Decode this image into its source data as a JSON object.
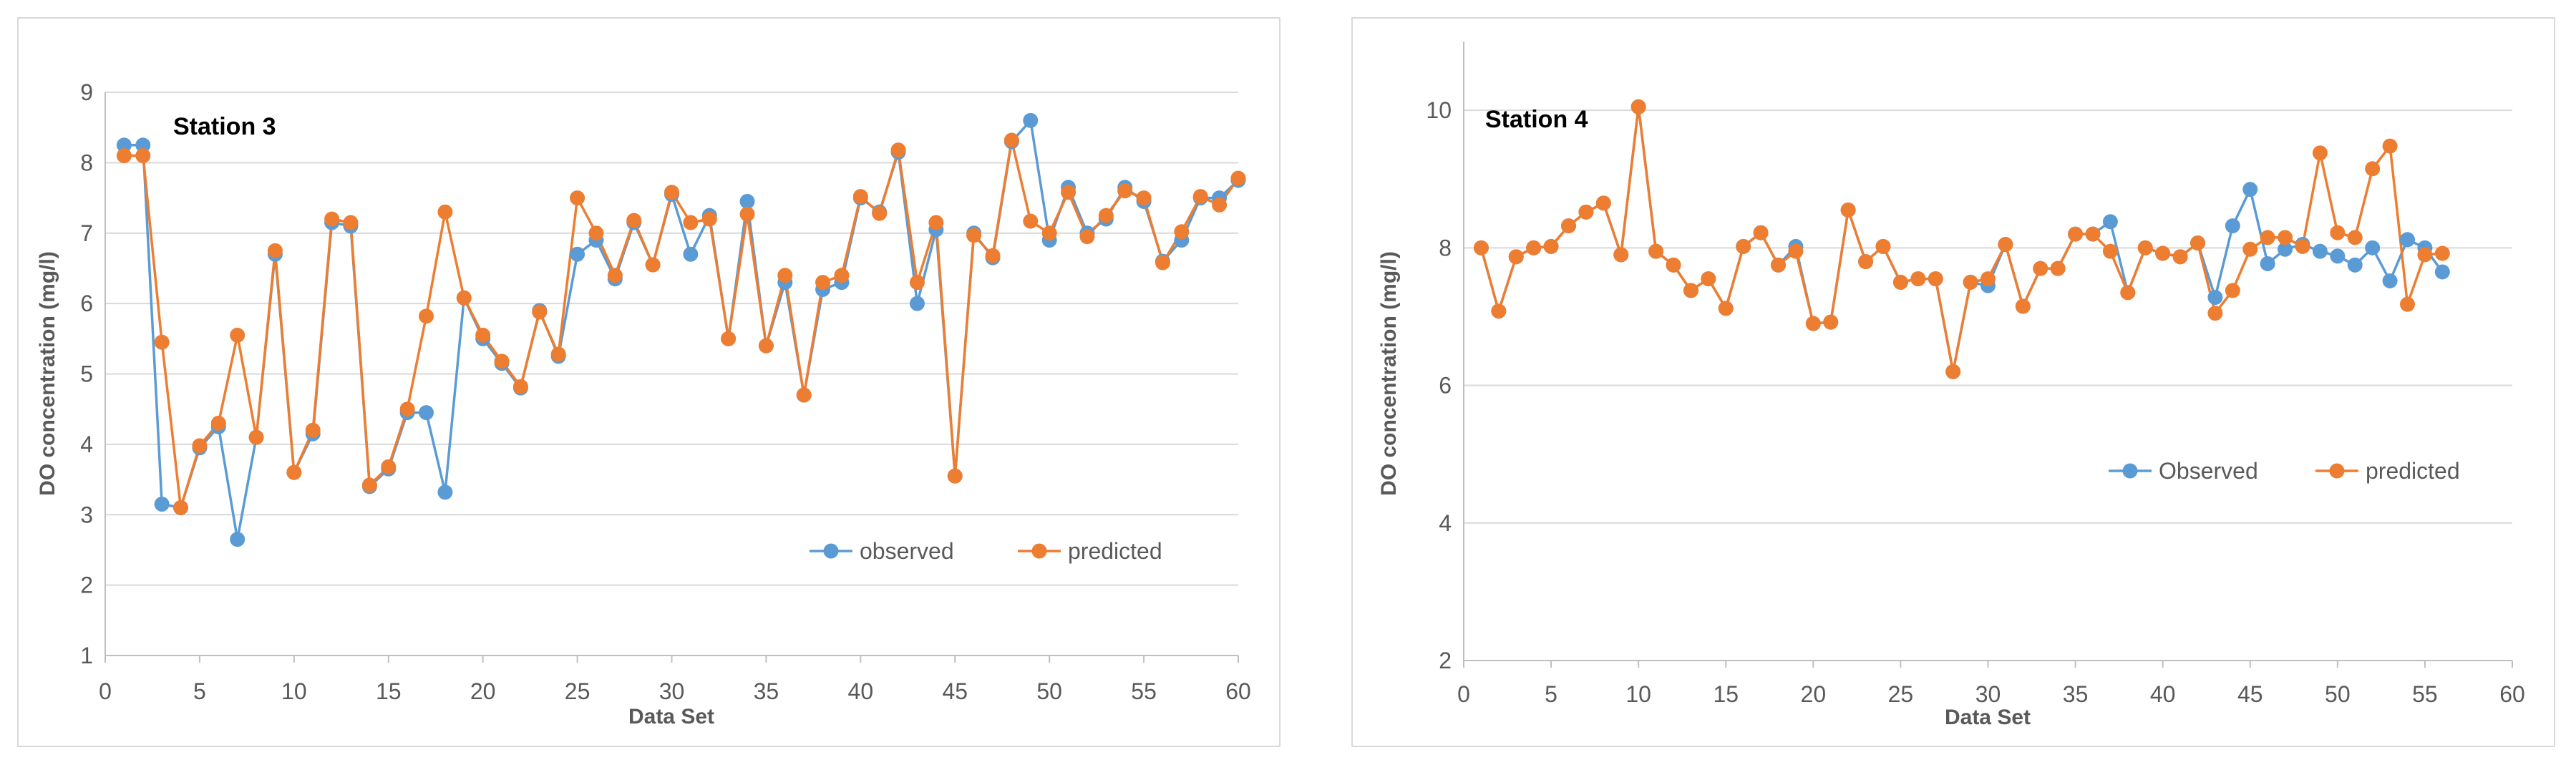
{
  "chart_data": [
    {
      "type": "line",
      "title": "Station 3",
      "xlabel": "Data Set",
      "ylabel": "DO concentration (mg/l)",
      "xlim": [
        0,
        60
      ],
      "ylim": [
        1,
        9
      ],
      "xticks": [
        0,
        5,
        10,
        15,
        20,
        25,
        30,
        35,
        40,
        45,
        50,
        55,
        60
      ],
      "yticks": [
        1,
        2,
        3,
        4,
        5,
        6,
        7,
        8,
        9
      ],
      "x_tick_labels": [
        "0",
        "5",
        "10",
        "15",
        "20",
        "25",
        "30",
        "35",
        "40",
        "45",
        "50",
        "55",
        "60"
      ],
      "y_tick_labels": [
        "1",
        "2",
        "3",
        "4",
        "5",
        "6",
        "7",
        "8",
        "9"
      ],
      "grid": true,
      "legend_position": "bottom-right",
      "series": [
        {
          "name": "observed",
          "color": "#5B9BD5",
          "values": [
            8.25,
            8.25,
            3.15,
            3.1,
            3.95,
            4.25,
            2.65,
            4.1,
            6.7,
            3.6,
            4.15,
            7.15,
            7.1,
            3.4,
            3.65,
            4.45,
            4.45,
            3.32,
            6.08,
            5.5,
            5.15,
            4.8,
            5.9,
            5.25,
            6.7,
            6.9,
            6.35,
            7.15,
            6.55,
            7.55,
            6.7,
            7.25,
            5.5,
            7.45,
            5.4,
            6.3,
            4.7,
            6.2,
            6.3,
            7.5,
            7.3,
            8.15,
            6.0,
            7.05,
            3.55,
            7.0,
            6.65,
            8.3,
            8.6,
            6.9,
            7.65,
            7.0,
            7.2,
            7.65,
            7.45,
            6.6,
            6.9,
            7.5,
            7.5,
            7.75
          ]
        },
        {
          "name": "predicted",
          "color": "#ED7D31",
          "values": [
            8.1,
            8.1,
            5.45,
            3.1,
            3.98,
            4.3,
            5.55,
            4.1,
            6.75,
            3.6,
            4.2,
            7.2,
            7.15,
            3.42,
            3.68,
            4.5,
            5.82,
            7.3,
            6.08,
            5.55,
            5.18,
            4.82,
            5.88,
            5.28,
            7.5,
            7.0,
            6.4,
            7.18,
            6.55,
            7.58,
            7.15,
            7.2,
            5.5,
            7.27,
            5.4,
            6.4,
            4.7,
            6.3,
            6.4,
            7.52,
            7.28,
            8.18,
            6.3,
            7.15,
            3.55,
            6.97,
            6.68,
            8.32,
            7.17,
            7.0,
            7.58,
            6.95,
            7.25,
            7.6,
            7.5,
            6.58,
            7.02,
            7.52,
            7.4,
            7.78
          ]
        }
      ]
    },
    {
      "type": "line",
      "title": "Station 4",
      "xlabel": "Data Set",
      "ylabel": "DO concentration (mg/l)",
      "xlim": [
        0,
        60
      ],
      "ylim": [
        2,
        11
      ],
      "xticks": [
        0,
        5,
        10,
        15,
        20,
        25,
        30,
        35,
        40,
        45,
        50,
        55,
        60
      ],
      "yticks": [
        2,
        4,
        6,
        8,
        10
      ],
      "x_tick_labels": [
        "0",
        "5",
        "10",
        "15",
        "20",
        "25",
        "30",
        "35",
        "40",
        "45",
        "50",
        "55",
        "60"
      ],
      "y_tick_labels": [
        "2",
        "4",
        "6",
        "8",
        "10"
      ],
      "grid": true,
      "legend_position": "right-middle",
      "series": [
        {
          "name": "Observed",
          "color": "#5B9BD5",
          "values": [
            8.0,
            7.08,
            7.87,
            8.0,
            8.02,
            8.32,
            8.52,
            8.65,
            7.9,
            10.05,
            7.95,
            7.75,
            7.38,
            7.55,
            7.12,
            8.02,
            8.22,
            7.75,
            8.02,
            6.9,
            6.92,
            8.55,
            7.8,
            8.02,
            7.5,
            7.55,
            7.55,
            6.2,
            7.5,
            7.45,
            8.05,
            7.15,
            7.7,
            7.7,
            8.2,
            8.2,
            8.38,
            7.35,
            8.0,
            7.92,
            7.87,
            8.07,
            7.28,
            8.32,
            8.85,
            7.77,
            7.98,
            8.05,
            7.95,
            7.88,
            7.75,
            8.0,
            7.52,
            8.12,
            8.0,
            7.65
          ]
        },
        {
          "name": "predicted",
          "color": "#ED7D31",
          "values": [
            8.0,
            7.08,
            7.87,
            8.0,
            8.02,
            8.32,
            8.52,
            8.65,
            7.9,
            10.05,
            7.95,
            7.75,
            7.38,
            7.55,
            7.12,
            8.02,
            8.22,
            7.75,
            7.95,
            6.9,
            6.92,
            8.55,
            7.8,
            8.02,
            7.5,
            7.55,
            7.55,
            6.2,
            7.5,
            7.55,
            8.05,
            7.15,
            7.7,
            7.7,
            8.2,
            8.2,
            7.95,
            7.35,
            8.0,
            7.92,
            7.87,
            8.07,
            7.05,
            7.38,
            7.98,
            8.15,
            8.15,
            8.02,
            9.38,
            8.22,
            8.15,
            9.15,
            9.48,
            7.18,
            7.9,
            7.92
          ]
        }
      ]
    }
  ]
}
